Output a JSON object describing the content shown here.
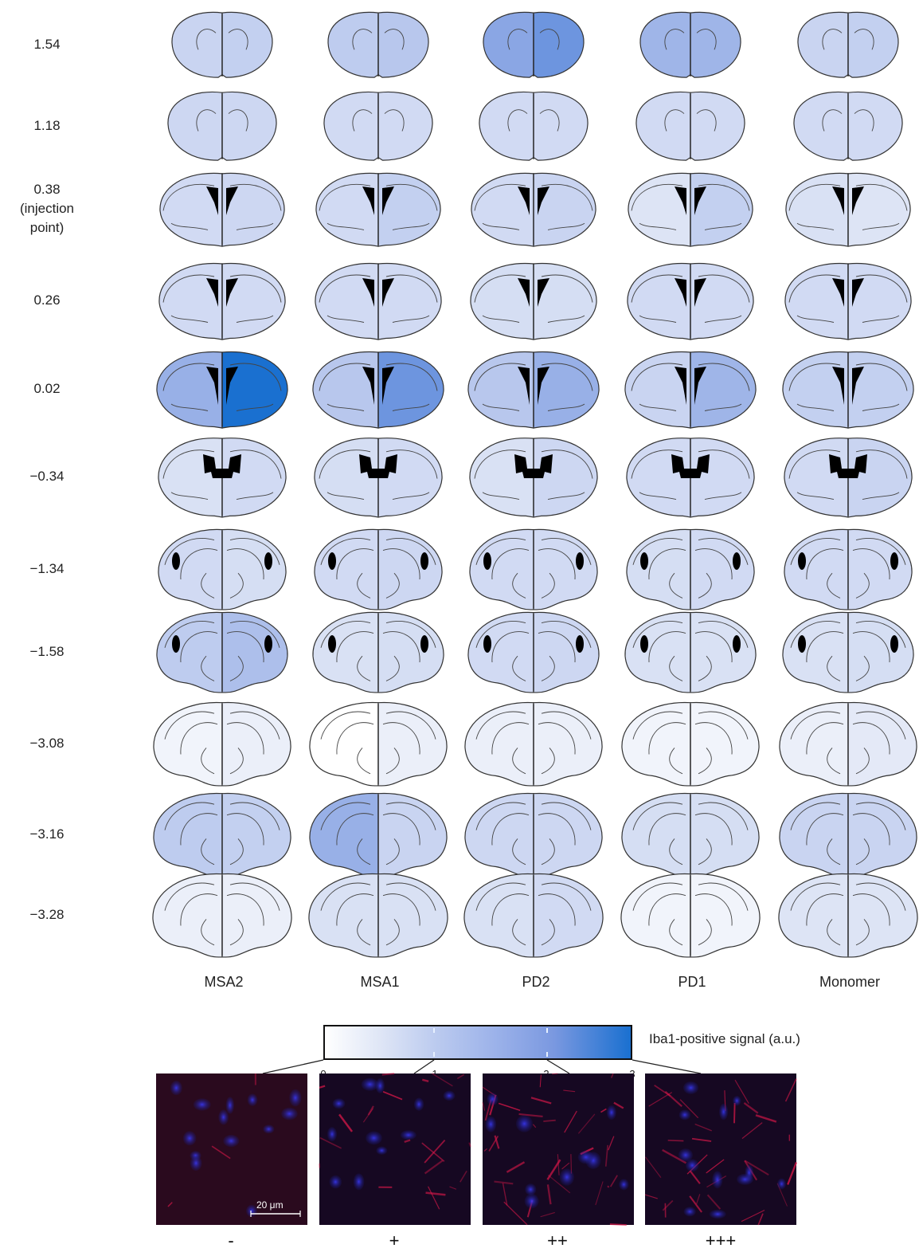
{
  "row_labels": [
    "1.54",
    "1.18",
    "0.38\n(injection\npoint)",
    "0.26",
    "0.02",
    "−0.34",
    "−1.34",
    "−1.58",
    "−3.08",
    "−3.16",
    "−3.28"
  ],
  "column_labels": [
    "MSA2",
    "MSA1",
    "PD2",
    "PD1",
    "Monomer"
  ],
  "colorbar": {
    "title": "Iba1-positive signal (a.u.)",
    "tick_labels": [
      "0",
      "1",
      "2",
      "3"
    ],
    "range": [
      0,
      3
    ],
    "colors": [
      "#ffffff",
      "#1a70d0"
    ]
  },
  "signal_levels": {
    "description_units": "a.u. (0-3)",
    "rows": [
      [
        [
          1.0,
          1.1
        ],
        [
          1.2,
          1.3
        ],
        [
          2.0,
          2.3
        ],
        [
          1.7,
          1.7
        ],
        [
          1.0,
          1.1
        ]
      ],
      [
        [
          0.9,
          0.9
        ],
        [
          0.8,
          0.8
        ],
        [
          0.8,
          0.8
        ],
        [
          0.8,
          0.8
        ],
        [
          0.8,
          0.8
        ]
      ],
      [
        [
          0.8,
          0.9
        ],
        [
          0.8,
          1.1
        ],
        [
          0.8,
          1.0
        ],
        [
          0.5,
          1.1
        ],
        [
          0.6,
          0.5
        ]
      ],
      [
        [
          0.8,
          0.8
        ],
        [
          0.8,
          0.8
        ],
        [
          0.7,
          0.7
        ],
        [
          0.8,
          0.8
        ],
        [
          0.8,
          0.8
        ]
      ],
      [
        [
          1.8,
          3.0
        ],
        [
          1.3,
          2.3
        ],
        [
          1.3,
          1.8
        ],
        [
          1.0,
          1.7
        ],
        [
          1.1,
          1.1
        ]
      ],
      [
        [
          0.6,
          0.8
        ],
        [
          0.7,
          0.8
        ],
        [
          0.6,
          0.9
        ],
        [
          0.8,
          0.8
        ],
        [
          0.8,
          1.0
        ]
      ],
      [
        [
          0.8,
          0.7
        ],
        [
          0.8,
          0.9
        ],
        [
          0.8,
          0.8
        ],
        [
          0.7,
          0.8
        ],
        [
          0.8,
          0.8
        ]
      ],
      [
        [
          1.2,
          1.5
        ],
        [
          0.6,
          0.7
        ],
        [
          0.8,
          0.9
        ],
        [
          0.6,
          0.6
        ],
        [
          0.6,
          0.7
        ]
      ],
      [
        [
          0.2,
          0.3
        ],
        [
          0.0,
          0.3
        ],
        [
          0.3,
          0.3
        ],
        [
          0.2,
          0.2
        ],
        [
          0.3,
          0.4
        ]
      ],
      [
        [
          1.2,
          1.1
        ],
        [
          1.8,
          1.0
        ],
        [
          0.9,
          0.9
        ],
        [
          0.7,
          0.7
        ],
        [
          1.0,
          1.0
        ]
      ],
      [
        [
          0.3,
          0.3
        ],
        [
          0.6,
          0.6
        ],
        [
          0.6,
          0.8
        ],
        [
          0.2,
          0.2
        ],
        [
          0.5,
          0.5
        ]
      ]
    ]
  },
  "micrographs": {
    "grades": [
      "-",
      "+",
      "++",
      "+++"
    ],
    "anchor_values": [
      0,
      1,
      2,
      3
    ],
    "scale_bar_label": "20 μm"
  }
}
